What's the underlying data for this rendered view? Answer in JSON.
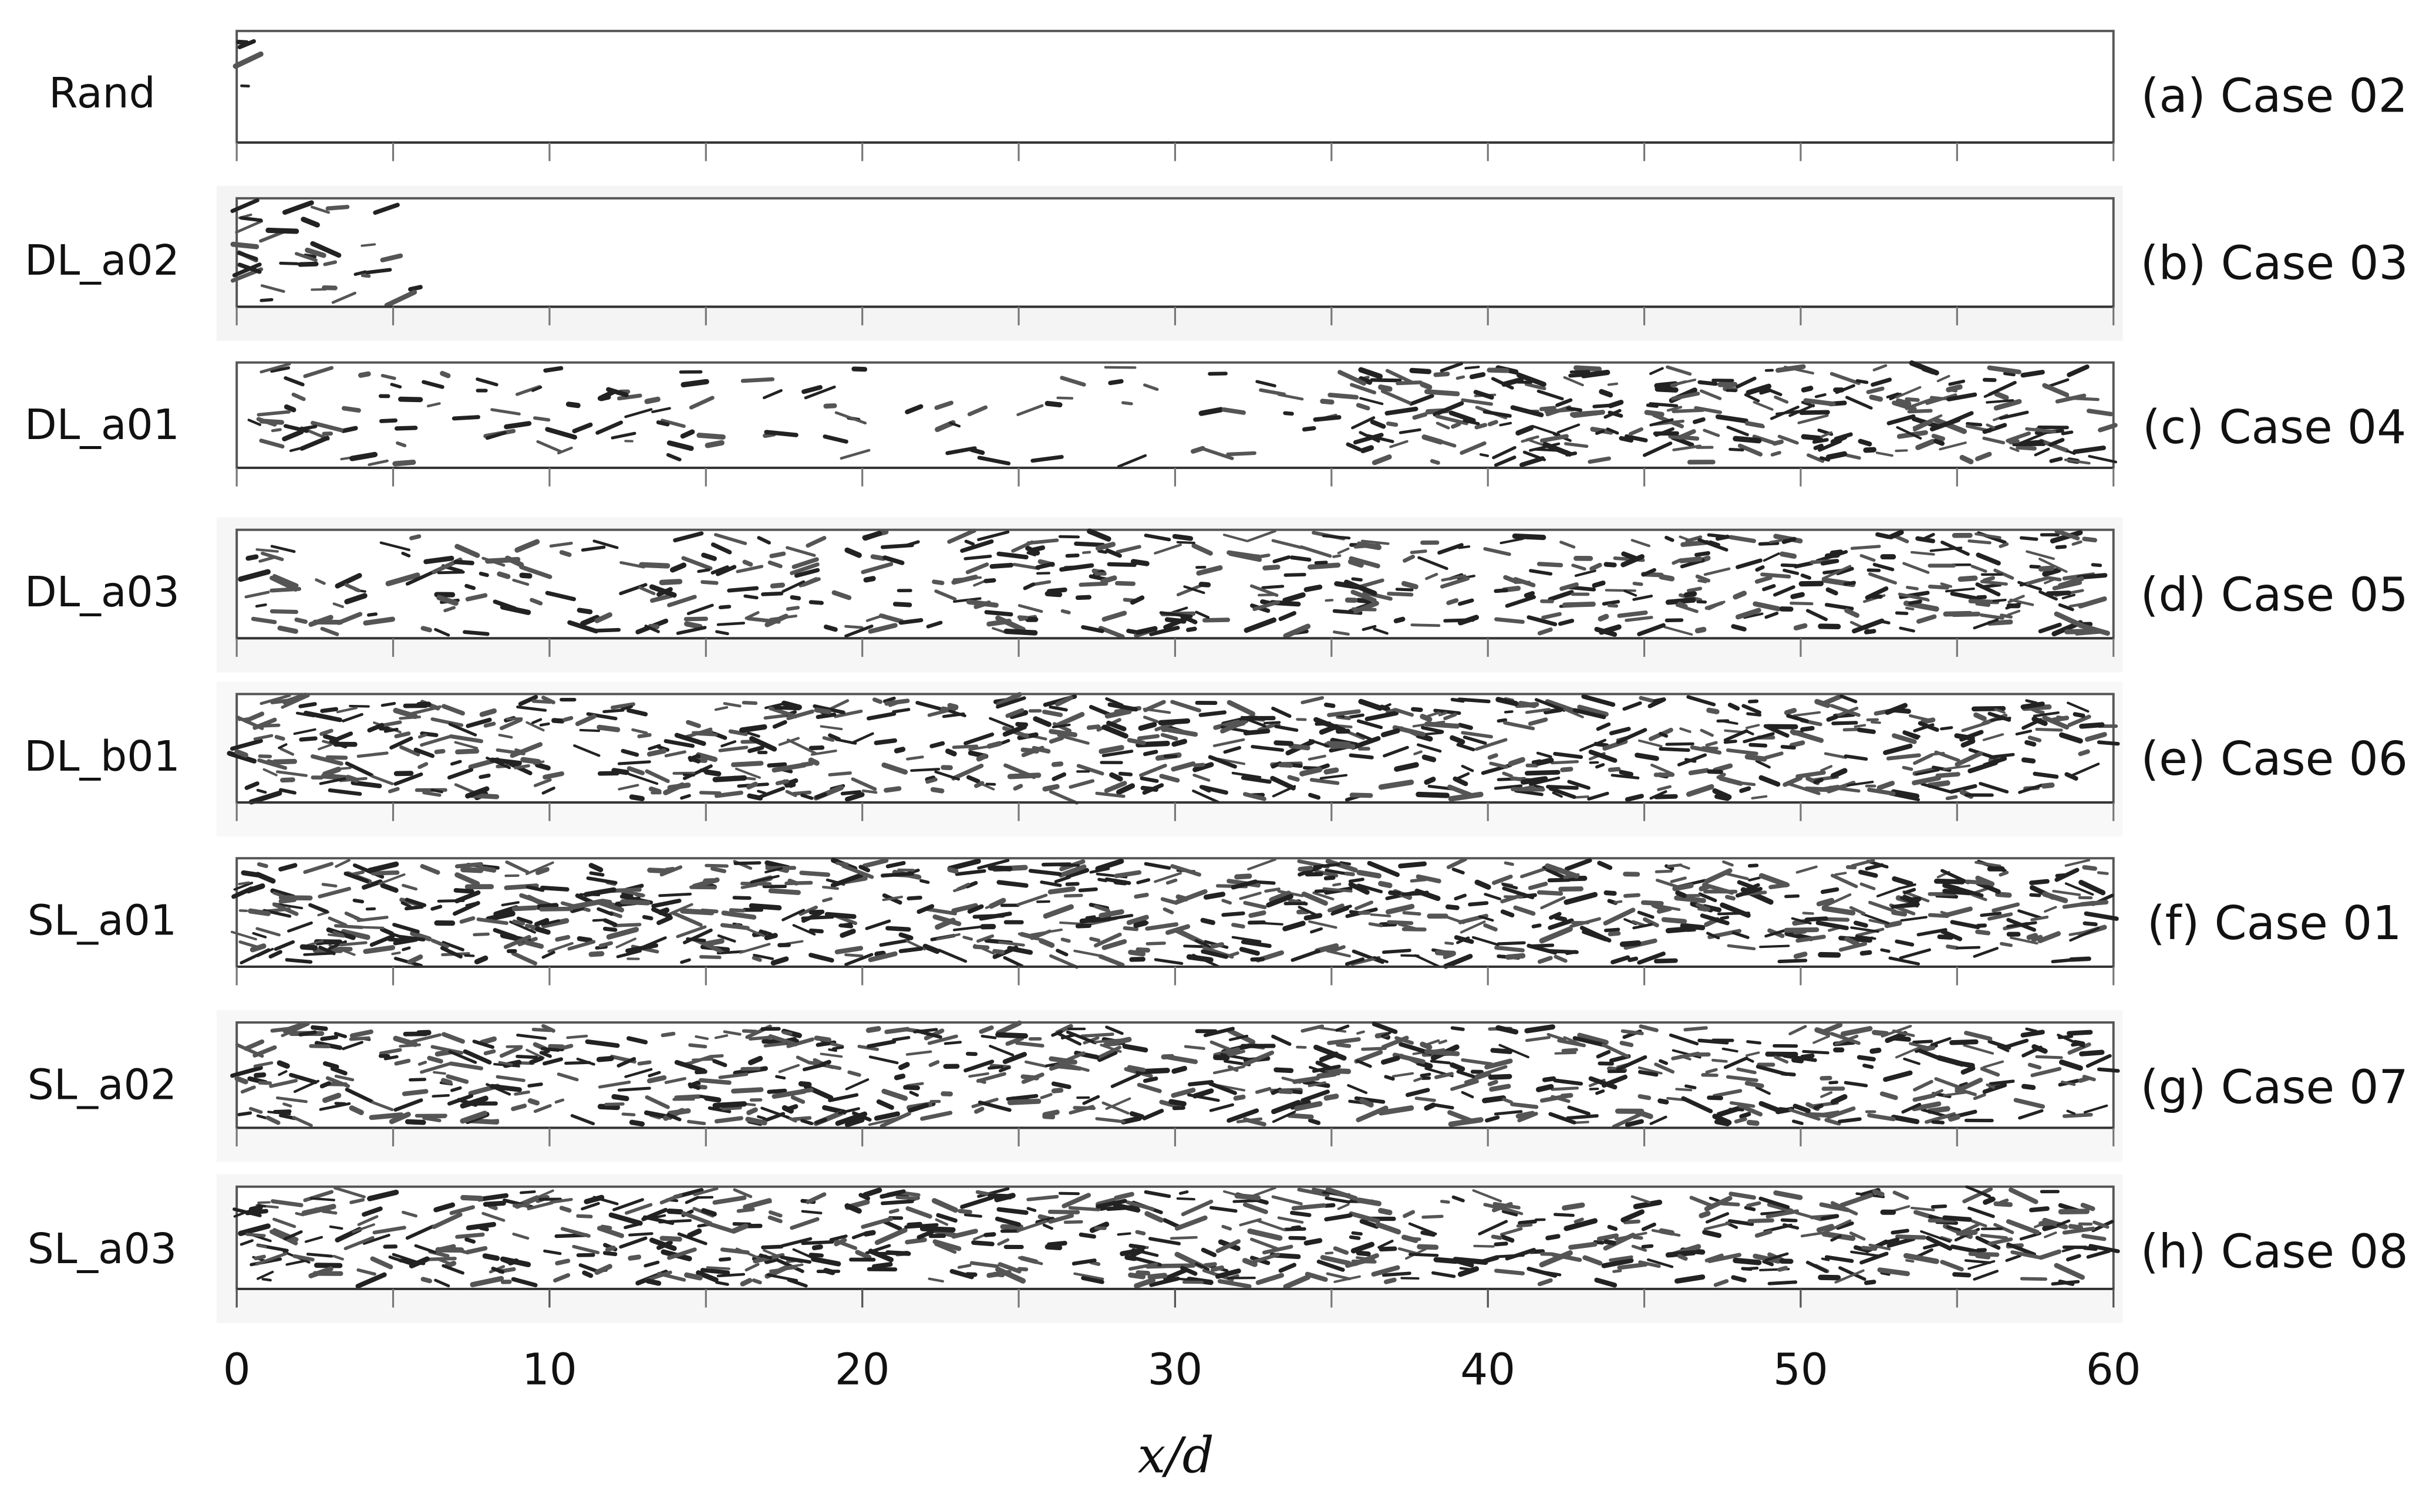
{
  "figure": {
    "panels": [
      {
        "label": "Rand",
        "caption": "(a) Case 02"
      },
      {
        "label": "DL_a02",
        "caption": "(b) Case 03"
      },
      {
        "label": "DL_a01",
        "caption": "(c) Case 04"
      },
      {
        "label": "DL_a03",
        "caption": "(d) Case 05"
      },
      {
        "label": "DL_b01",
        "caption": "(e) Case 06"
      },
      {
        "label": "SL_a01",
        "caption": "(f) Case 01"
      },
      {
        "label": "SL_a02",
        "caption": "(g) Case 07"
      },
      {
        "label": "SL_a03",
        "caption": "(h) Case 08"
      }
    ],
    "x_axis": {
      "label": "x/d",
      "lim": [
        0,
        60
      ],
      "ticks": [
        0,
        10,
        20,
        30,
        40,
        50,
        60
      ]
    }
  }
}
